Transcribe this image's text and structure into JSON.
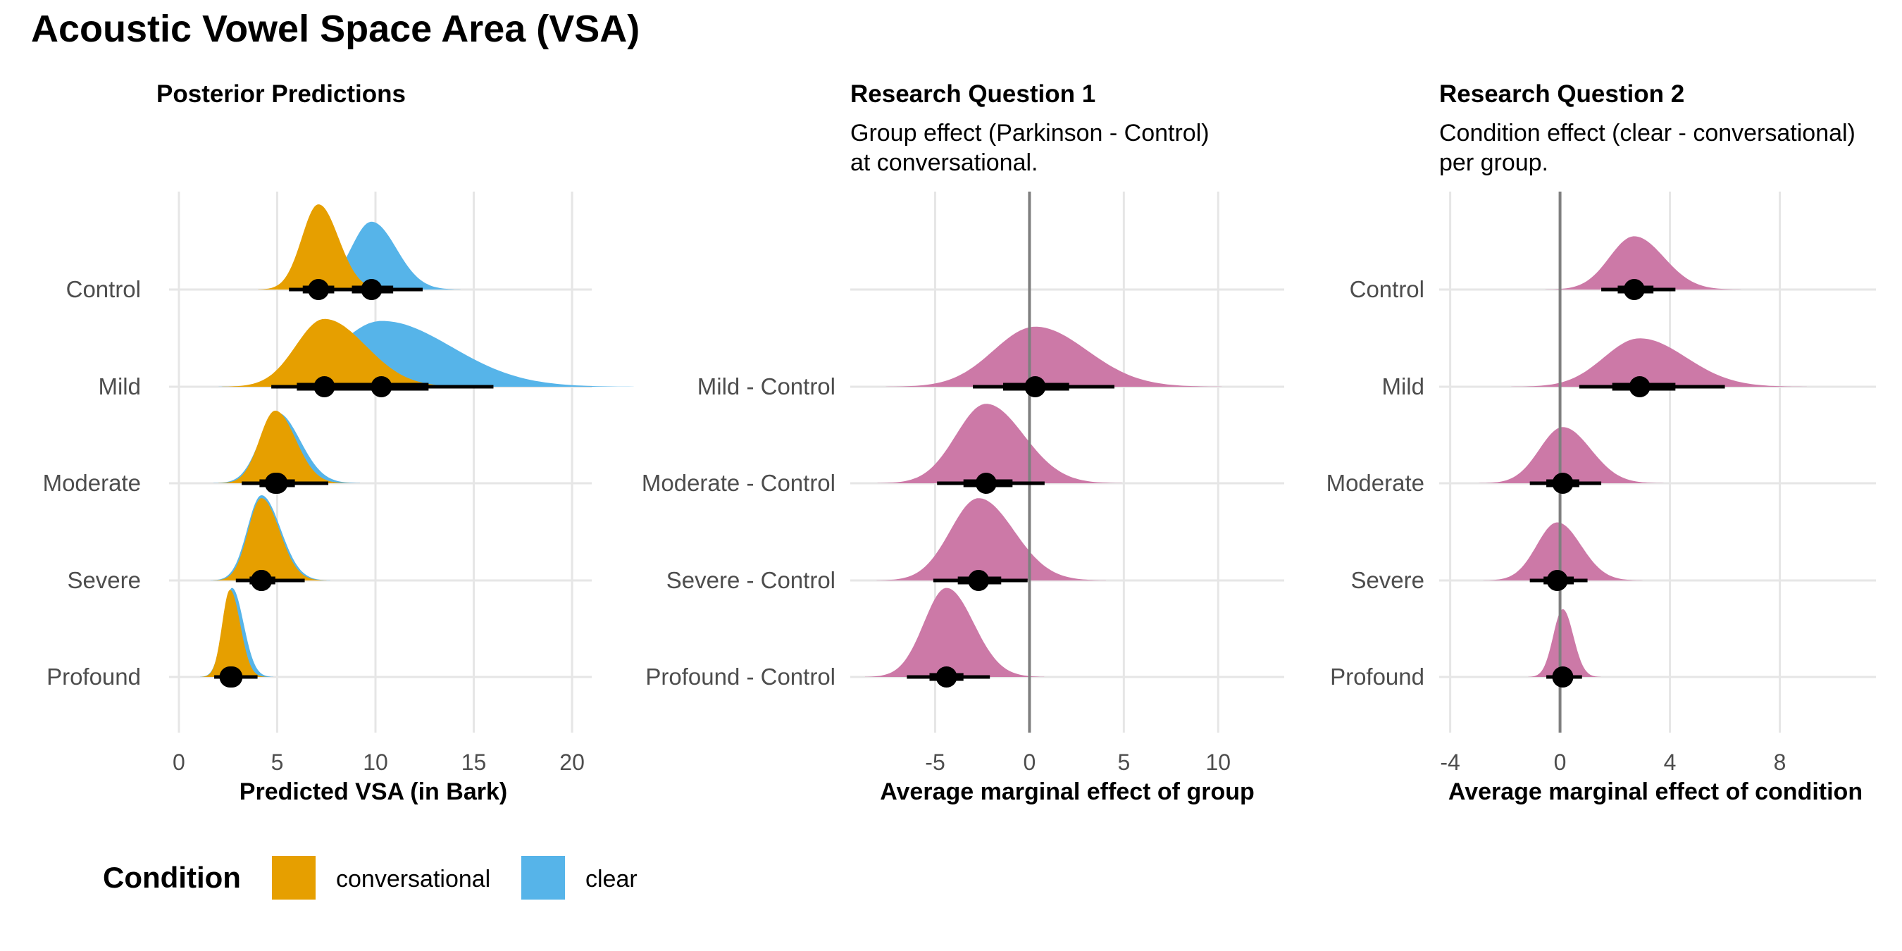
{
  "figure": {
    "title": "Acoustic Vowel Space Area (VSA)"
  },
  "legend": {
    "title": "Condition",
    "items": [
      {
        "label": "conversational",
        "color": "#E69F00"
      },
      {
        "label": "clear",
        "color": "#56B4E9"
      }
    ]
  },
  "chart_data": [
    {
      "type": "halfeye",
      "title": "Posterior Predictions",
      "subtitle": "",
      "xlabel": "Predicted VSA (in Bark)",
      "ylabel": "",
      "xlim": [
        -0.5,
        21
      ],
      "xticks": [
        0,
        5,
        10,
        15,
        20
      ],
      "categories": [
        "Control",
        "Mild",
        "Moderate",
        "Severe",
        "Profound"
      ],
      "grid": true,
      "legend": "bottom-left",
      "series": [
        {
          "name": "clear",
          "color": "#56B4E9",
          "distributions": [
            {
              "category": "Control",
              "median": 9.8,
              "sd": 1.05,
              "skew": 0.2,
              "peak": 0.7,
              "ci66": [
                8.8,
                10.9
              ],
              "ci95": [
                7.4,
                12.4
              ]
            },
            {
              "category": "Mild",
              "median": 10.3,
              "sd": 2.3,
              "skew": 0.55,
              "peak": 0.68,
              "ci66": [
                8.3,
                12.7
              ],
              "ci95": [
                5.3,
                16.0
              ]
            },
            {
              "category": "Moderate",
              "median": 5.0,
              "sd": 0.9,
              "skew": 0.3,
              "peak": 0.73,
              "ci66": [
                4.2,
                5.9
              ],
              "ci95": [
                3.2,
                7.6
              ]
            },
            {
              "category": "Severe",
              "median": 4.2,
              "sd": 0.72,
              "skew": 0.35,
              "peak": 0.88,
              "ci66": [
                3.6,
                4.9
              ],
              "ci95": [
                2.9,
                6.4
              ]
            },
            {
              "category": "Profound",
              "median": 2.7,
              "sd": 0.45,
              "skew": 0.3,
              "peak": 0.92,
              "ci66": [
                2.3,
                3.1
              ],
              "ci95": [
                1.8,
                4.0
              ]
            }
          ]
        },
        {
          "name": "conversational",
          "color": "#E69F00",
          "distributions": [
            {
              "category": "Control",
              "median": 7.1,
              "sd": 0.85,
              "skew": 0.2,
              "peak": 0.88,
              "ci66": [
                6.3,
                7.9
              ],
              "ci95": [
                5.6,
                9.4
              ]
            },
            {
              "category": "Mild",
              "median": 7.4,
              "sd": 1.45,
              "skew": 0.45,
              "peak": 0.7,
              "ci66": [
                6.0,
                8.9
              ],
              "ci95": [
                4.7,
                11.4
              ]
            },
            {
              "category": "Moderate",
              "median": 4.9,
              "sd": 0.8,
              "skew": 0.3,
              "peak": 0.75,
              "ci66": [
                4.1,
                5.8
              ],
              "ci95": [
                3.2,
                7.2
              ]
            },
            {
              "category": "Severe",
              "median": 4.2,
              "sd": 0.68,
              "skew": 0.35,
              "peak": 0.85,
              "ci66": [
                3.6,
                4.9
              ],
              "ci95": [
                2.9,
                6.2
              ]
            },
            {
              "category": "Profound",
              "median": 2.6,
              "sd": 0.4,
              "skew": 0.3,
              "peak": 0.9,
              "ci66": [
                2.2,
                3.0
              ],
              "ci95": [
                1.8,
                3.9
              ]
            }
          ]
        }
      ]
    },
    {
      "type": "halfeye",
      "title": "Research Question 1",
      "subtitle": [
        "Group effect (Parkinson - Control)",
        "at conversational."
      ],
      "xlabel": "Average marginal effect of group",
      "ylabel": "",
      "xlim": [
        -9.5,
        13.5
      ],
      "xticks": [
        -5,
        0,
        5,
        10
      ],
      "xtick_labels": [
        "-5",
        "0",
        "5",
        "10"
      ],
      "reference_line": 0,
      "categories": [
        "",
        "Mild - Control",
        "Moderate - Control",
        "Severe - Control",
        "Profound - Control"
      ],
      "grid": true,
      "series": [
        {
          "name": "",
          "color": "#CC79A7",
          "distributions": [
            {
              "category": "Mild - Control",
              "median": 0.3,
              "sd": 2.2,
              "skew": 0.25,
              "peak": 0.62,
              "ci66": [
                -1.4,
                2.1
              ],
              "ci95": [
                -3.0,
                4.5
              ]
            },
            {
              "category": "Moderate - Control",
              "median": -2.3,
              "sd": 1.6,
              "skew": 0.25,
              "peak": 0.82,
              "ci66": [
                -3.5,
                -0.9
              ],
              "ci95": [
                -4.9,
                0.8
              ]
            },
            {
              "category": "Severe - Control",
              "median": -2.7,
              "sd": 1.5,
              "skew": 0.25,
              "peak": 0.85,
              "ci66": [
                -3.8,
                -1.5
              ],
              "ci95": [
                -5.1,
                -0.1
              ]
            },
            {
              "category": "Profound - Control",
              "median": -4.4,
              "sd": 1.2,
              "skew": 0.2,
              "peak": 0.92,
              "ci66": [
                -5.3,
                -3.5
              ],
              "ci95": [
                -6.5,
                -2.1
              ]
            }
          ]
        }
      ]
    },
    {
      "type": "halfeye",
      "title": "Research Question 2",
      "subtitle": [
        "Condition effect (clear - conversational)",
        "per group."
      ],
      "xlabel": "Average marginal effect of condition",
      "ylabel": "",
      "xlim": [
        -4.4,
        11.5
      ],
      "xticks": [
        -4,
        0,
        4,
        8
      ],
      "xtick_labels": [
        "-4",
        "0",
        "4",
        "8"
      ],
      "reference_line": 0,
      "categories": [
        "Control",
        "Mild",
        "Moderate",
        "Severe",
        "Profound"
      ],
      "grid": true,
      "series": [
        {
          "name": "",
          "color": "#CC79A7",
          "distributions": [
            {
              "category": "Control",
              "median": 2.7,
              "sd": 0.9,
              "skew": 0.2,
              "peak": 0.55,
              "ci66": [
                2.1,
                3.4
              ],
              "ci95": [
                1.5,
                4.2
              ]
            },
            {
              "category": "Mild",
              "median": 2.9,
              "sd": 1.3,
              "skew": 0.3,
              "peak": 0.5,
              "ci66": [
                1.9,
                4.2
              ],
              "ci95": [
                0.7,
                6.0
              ]
            },
            {
              "category": "Moderate",
              "median": 0.1,
              "sd": 0.85,
              "skew": 0.2,
              "peak": 0.58,
              "ci66": [
                -0.5,
                0.7
              ],
              "ci95": [
                -1.1,
                1.5
              ]
            },
            {
              "category": "Severe",
              "median": -0.1,
              "sd": 0.75,
              "skew": 0.15,
              "peak": 0.6,
              "ci66": [
                -0.6,
                0.5
              ],
              "ci95": [
                -1.1,
                1.0
              ]
            },
            {
              "category": "Profound",
              "median": 0.1,
              "sd": 0.35,
              "skew": 0.1,
              "peak": 0.7,
              "ci66": [
                -0.2,
                0.4
              ],
              "ci95": [
                -0.5,
                0.8
              ]
            }
          ]
        }
      ]
    }
  ]
}
